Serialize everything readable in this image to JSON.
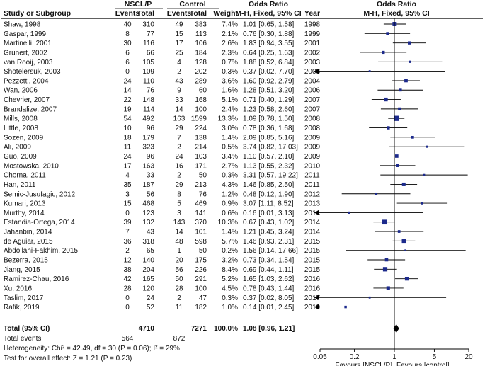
{
  "headers": {
    "group1": "NSCL/P",
    "group2": "Control",
    "col_study": "Study or Subgroup",
    "col_events1": "Events",
    "col_total1": "Total",
    "col_events2": "Events",
    "col_total2": "Total",
    "col_weight": "Weight",
    "or_left_title": "Odds Ratio",
    "or_left_sub": "M-H, Fixed, 95% CI",
    "col_year": "Year",
    "or_right_title": "Odds Ratio",
    "or_right_sub": "M-H, Fixed, 95% CI"
  },
  "chart_data": {
    "type": "forest",
    "scale": "log",
    "xlim": [
      0.05,
      20
    ],
    "xticks": [
      0.05,
      0.2,
      1,
      5,
      20
    ],
    "tick_labels": [
      "0.05",
      "0.2",
      "1",
      "5",
      "20"
    ],
    "reference_line": 1,
    "favours_left": "Favours [NSCL/P]",
    "favours_right": "Favours [control]",
    "studies": [
      {
        "name": "Shaw, 1998",
        "e1": "40",
        "t1": "310",
        "e2": "49",
        "t2": "383",
        "weight": "7.4%",
        "or": 1.01,
        "lo": 0.65,
        "hi": 1.58,
        "ci_text": "1.01 [0.65, 1.58]",
        "year": "1998"
      },
      {
        "name": "Gaspar, 1999",
        "e1": "8",
        "t1": "77",
        "e2": "15",
        "t2": "113",
        "weight": "2.1%",
        "or": 0.76,
        "lo": 0.3,
        "hi": 1.88,
        "ci_text": "0.76 [0.30, 1.88]",
        "year": "1999"
      },
      {
        "name": "Martinelli, 2001",
        "e1": "30",
        "t1": "116",
        "e2": "17",
        "t2": "106",
        "weight": "2.6%",
        "or": 1.83,
        "lo": 0.94,
        "hi": 3.55,
        "ci_text": "1.83 [0.94, 3.55]",
        "year": "2001"
      },
      {
        "name": "Grunert, 2002",
        "e1": "6",
        "t1": "66",
        "e2": "25",
        "t2": "184",
        "weight": "2.3%",
        "or": 0.64,
        "lo": 0.25,
        "hi": 1.63,
        "ci_text": "0.64 [0.25, 1.63]",
        "year": "2002"
      },
      {
        "name": "van Rooij, 2003",
        "e1": "6",
        "t1": "105",
        "e2": "4",
        "t2": "128",
        "weight": "0.7%",
        "or": 1.88,
        "lo": 0.52,
        "hi": 6.84,
        "ci_text": "1.88 [0.52, 6.84]",
        "year": "2003"
      },
      {
        "name": "Shotelersuk, 2003",
        "e1": "0",
        "t1": "109",
        "e2": "2",
        "t2": "202",
        "weight": "0.3%",
        "or": 0.37,
        "lo": 0.02,
        "hi": 7.7,
        "ci_text": "0.37 [0.02, 7.70]",
        "year": "2003"
      },
      {
        "name": "Pezzetti, 2004",
        "e1": "24",
        "t1": "110",
        "e2": "43",
        "t2": "289",
        "weight": "3.6%",
        "or": 1.6,
        "lo": 0.92,
        "hi": 2.79,
        "ci_text": "1.60 [0.92, 2.79]",
        "year": "2004"
      },
      {
        "name": "Wan, 2006",
        "e1": "14",
        "t1": "76",
        "e2": "9",
        "t2": "60",
        "weight": "1.6%",
        "or": 1.28,
        "lo": 0.51,
        "hi": 3.2,
        "ci_text": "1.28 [0.51, 3.20]",
        "year": "2006"
      },
      {
        "name": "Chevrier, 2007",
        "e1": "22",
        "t1": "148",
        "e2": "33",
        "t2": "168",
        "weight": "5.1%",
        "or": 0.71,
        "lo": 0.4,
        "hi": 1.29,
        "ci_text": "0.71 [0.40, 1.29]",
        "year": "2007"
      },
      {
        "name": "Brandalize, 2007",
        "e1": "19",
        "t1": "114",
        "e2": "14",
        "t2": "100",
        "weight": "2.4%",
        "or": 1.23,
        "lo": 0.58,
        "hi": 2.6,
        "ci_text": "1.23 [0.58, 2.60]",
        "year": "2007"
      },
      {
        "name": "Mills, 2008",
        "e1": "54",
        "t1": "492",
        "e2": "163",
        "t2": "1599",
        "weight": "13.3%",
        "or": 1.09,
        "lo": 0.78,
        "hi": 1.5,
        "ci_text": "1.09 [0.78, 1.50]",
        "year": "2008"
      },
      {
        "name": "Little, 2008",
        "e1": "10",
        "t1": "96",
        "e2": "29",
        "t2": "224",
        "weight": "3.0%",
        "or": 0.78,
        "lo": 0.36,
        "hi": 1.68,
        "ci_text": "0.78 [0.36, 1.68]",
        "year": "2008"
      },
      {
        "name": "Sozen, 2009",
        "e1": "18",
        "t1": "179",
        "e2": "7",
        "t2": "138",
        "weight": "1.4%",
        "or": 2.09,
        "lo": 0.85,
        "hi": 5.16,
        "ci_text": "2.09 [0.85, 5.16]",
        "year": "2009"
      },
      {
        "name": "Ali, 2009",
        "e1": "11",
        "t1": "323",
        "e2": "2",
        "t2": "214",
        "weight": "0.5%",
        "or": 3.74,
        "lo": 0.82,
        "hi": 17.03,
        "ci_text": "3.74 [0.82, 17.03]",
        "year": "2009"
      },
      {
        "name": "Guo, 2009",
        "e1": "24",
        "t1": "96",
        "e2": "24",
        "t2": "103",
        "weight": "3.4%",
        "or": 1.1,
        "lo": 0.57,
        "hi": 2.1,
        "ci_text": "1.10 [0.57, 2.10]",
        "year": "2009"
      },
      {
        "name": "Mostowska, 2010",
        "e1": "17",
        "t1": "163",
        "e2": "16",
        "t2": "171",
        "weight": "2.7%",
        "or": 1.13,
        "lo": 0.55,
        "hi": 2.32,
        "ci_text": "1.13 [0.55, 2.32]",
        "year": "2010"
      },
      {
        "name": "Chorna, 2011",
        "e1": "4",
        "t1": "33",
        "e2": "2",
        "t2": "50",
        "weight": "0.3%",
        "or": 3.31,
        "lo": 0.57,
        "hi": 19.22,
        "ci_text": "3.31 [0.57, 19.22]",
        "year": "2011"
      },
      {
        "name": "Han, 2011",
        "e1": "35",
        "t1": "187",
        "e2": "29",
        "t2": "213",
        "weight": "4.3%",
        "or": 1.46,
        "lo": 0.85,
        "hi": 2.5,
        "ci_text": "1.46 [0.85, 2.50]",
        "year": "2011"
      },
      {
        "name": "Semic-Jusufagic, 2012",
        "e1": "3",
        "t1": "56",
        "e2": "8",
        "t2": "76",
        "weight": "1.2%",
        "or": 0.48,
        "lo": 0.12,
        "hi": 1.9,
        "ci_text": "0.48 [0.12, 1.90]",
        "year": "2012"
      },
      {
        "name": "Kumari, 2013",
        "e1": "15",
        "t1": "468",
        "e2": "5",
        "t2": "469",
        "weight": "0.9%",
        "or": 3.07,
        "lo": 1.11,
        "hi": 8.52,
        "ci_text": "3.07 [1.11, 8.52]",
        "year": "2013"
      },
      {
        "name": "Murthy, 2014",
        "e1": "0",
        "t1": "123",
        "e2": "3",
        "t2": "141",
        "weight": "0.6%",
        "or": 0.16,
        "lo": 0.01,
        "hi": 3.13,
        "ci_text": "0.16 [0.01, 3.13]",
        "year": "2014"
      },
      {
        "name": "Estandia-Ortega, 2014",
        "e1": "39",
        "t1": "132",
        "e2": "143",
        "t2": "370",
        "weight": "10.3%",
        "or": 0.67,
        "lo": 0.43,
        "hi": 1.02,
        "ci_text": "0.67 [0.43, 1.02]",
        "year": "2014"
      },
      {
        "name": "Jahanbin, 2014",
        "e1": "7",
        "t1": "43",
        "e2": "14",
        "t2": "101",
        "weight": "1.4%",
        "or": 1.21,
        "lo": 0.45,
        "hi": 3.24,
        "ci_text": "1.21 [0.45, 3.24]",
        "year": "2014"
      },
      {
        "name": "de Aguiar, 2015",
        "e1": "36",
        "t1": "318",
        "e2": "48",
        "t2": "598",
        "weight": "5.7%",
        "or": 1.46,
        "lo": 0.93,
        "hi": 2.31,
        "ci_text": "1.46 [0.93, 2.31]",
        "year": "2015"
      },
      {
        "name": "Abdollahi-Fakhim, 2015",
        "e1": "2",
        "t1": "65",
        "e2": "1",
        "t2": "50",
        "weight": "0.2%",
        "or": 1.56,
        "lo": 0.14,
        "hi": 17.66,
        "ci_text": "1.56 [0.14, 17.66]",
        "year": "2015"
      },
      {
        "name": "Bezerra, 2015",
        "e1": "12",
        "t1": "140",
        "e2": "20",
        "t2": "175",
        "weight": "3.2%",
        "or": 0.73,
        "lo": 0.34,
        "hi": 1.54,
        "ci_text": "0.73 [0.34, 1.54]",
        "year": "2015"
      },
      {
        "name": "Jiang, 2015",
        "e1": "38",
        "t1": "204",
        "e2": "56",
        "t2": "226",
        "weight": "8.4%",
        "or": 0.69,
        "lo": 0.44,
        "hi": 1.11,
        "ci_text": "0.69 [0.44, 1.11]",
        "year": "2015"
      },
      {
        "name": "Ramirez-Chau, 2016",
        "e1": "42",
        "t1": "165",
        "e2": "50",
        "t2": "291",
        "weight": "5.2%",
        "or": 1.65,
        "lo": 1.03,
        "hi": 2.62,
        "ci_text": "1.65 [1.03, 2.62]",
        "year": "2016"
      },
      {
        "name": "Xu, 2016",
        "e1": "28",
        "t1": "120",
        "e2": "28",
        "t2": "100",
        "weight": "4.5%",
        "or": 0.78,
        "lo": 0.43,
        "hi": 1.44,
        "ci_text": "0.78 [0.43, 1.44]",
        "year": "2016"
      },
      {
        "name": "Taslim, 2017",
        "e1": "0",
        "t1": "24",
        "e2": "2",
        "t2": "47",
        "weight": "0.3%",
        "or": 0.37,
        "lo": 0.02,
        "hi": 8.05,
        "ci_text": "0.37 [0.02, 8.05]",
        "year": "2017"
      },
      {
        "name": "Rafik, 2019",
        "e1": "0",
        "t1": "52",
        "e2": "11",
        "t2": "182",
        "weight": "1.0%",
        "or": 0.14,
        "lo": 0.01,
        "hi": 2.45,
        "ci_text": "0.14 [0.01, 2.45]",
        "year": "2019"
      }
    ],
    "total": {
      "label": "Total (95% CI)",
      "t1": "4710",
      "t2": "7271",
      "weight": "100.0%",
      "or": 1.08,
      "lo": 0.96,
      "hi": 1.21,
      "ci_text": "1.08 [0.96, 1.21]"
    },
    "total_events": {
      "label": "Total events",
      "e1": "564",
      "e2": "872"
    },
    "heterogeneity": "Heterogeneity: Chi² = 42.49, df = 30 (P = 0.06); I² = 29%",
    "overall_effect": "Test for overall effect: Z = 1.21 (P = 0.23)",
    "colors": {
      "marker": "#1c2a8c",
      "line": "#000000"
    }
  }
}
